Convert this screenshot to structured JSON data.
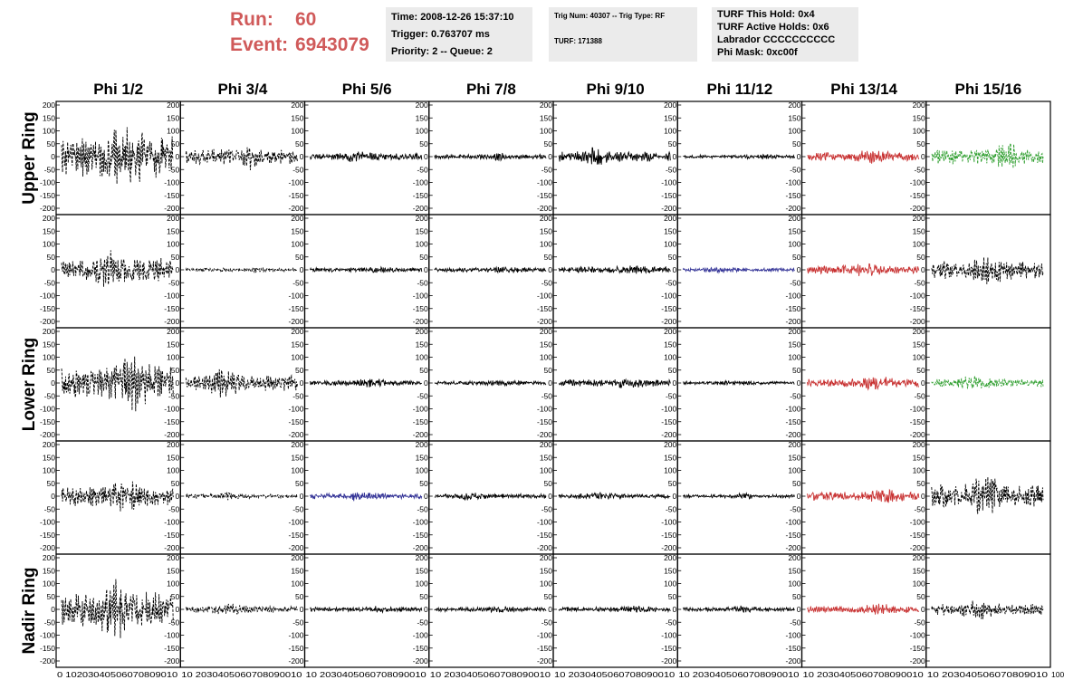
{
  "header": {
    "run_label": "Run:",
    "run_value": "60",
    "event_label": "Event:",
    "event_value": "6943079",
    "info_box_1": [
      "Time: 2008-12-26 15:37:10",
      "Trigger: 0.763707 ms",
      "Priority: 2 -- Queue: 2"
    ],
    "info_box_2": [
      "Trig Num: 40307 -- Trig Type: RF",
      "TURF: 171388"
    ],
    "info_box_3": [
      "TURF This Hold: 0x4",
      "TURF Active Holds: 0x6",
      "Labrador CCCCCCCCCC",
      "Phi Mask: 0xc00f"
    ]
  },
  "colors": {
    "header_text": "#d05a5a",
    "info_bg": "#ebebeb",
    "trace_default": "#000000",
    "trace_red": "#c83232",
    "trace_blue": "#323296",
    "trace_green": "#32a032"
  },
  "chart_data": {
    "type": "line",
    "columns": [
      "Phi 1/2",
      "Phi 3/4",
      "Phi 5/6",
      "Phi 7/8",
      "Phi 9/10",
      "Phi 11/12",
      "Phi 13/14",
      "Phi 15/16"
    ],
    "row_labels": [
      "Upper Ring",
      "Lower Ring",
      "Nadir Ring"
    ],
    "panel_rows": 5,
    "xlim": [
      0,
      100
    ],
    "ylim": [
      -200,
      200
    ],
    "y_ticks": [
      -200,
      -150,
      -100,
      -50,
      0,
      50,
      100,
      150,
      200
    ],
    "x_ticks": [
      0,
      10,
      20,
      30,
      40,
      50,
      60,
      70,
      80,
      90,
      100
    ],
    "bottom_tick_text": [
      "0 10203040506070809010",
      "10 2030405060708090010",
      "10 2030405060708090010",
      "10 2030405060708090010",
      "10 2030405060708090010",
      "10 2030405060708090010",
      "10 2030405060708090010",
      "10 203040506070809010"
    ],
    "bottom_last_tick": "100",
    "panels": [
      [
        {
          "color": "black",
          "dashed": true,
          "amplitude": 130
        },
        {
          "color": "black",
          "dashed": true,
          "amplitude": 45
        },
        {
          "color": "black",
          "dashed": false,
          "amplitude": 20
        },
        {
          "color": "black",
          "dashed": false,
          "amplitude": 14
        },
        {
          "color": "black",
          "dashed": false,
          "amplitude": 30
        },
        {
          "color": "black",
          "dashed": false,
          "amplitude": 10
        },
        {
          "color": "red",
          "dashed": false,
          "amplitude": 25
        },
        {
          "color": "green",
          "dashed": true,
          "amplitude": 45
        }
      ],
      [
        {
          "color": "black",
          "dashed": true,
          "amplitude": 70
        },
        {
          "color": "black",
          "dashed": true,
          "amplitude": 10
        },
        {
          "color": "black",
          "dashed": false,
          "amplitude": 13
        },
        {
          "color": "black",
          "dashed": false,
          "amplitude": 13
        },
        {
          "color": "black",
          "dashed": false,
          "amplitude": 18
        },
        {
          "color": "blue",
          "dashed": false,
          "amplitude": 10
        },
        {
          "color": "red",
          "dashed": false,
          "amplitude": 25
        },
        {
          "color": "black",
          "dashed": true,
          "amplitude": 55
        }
      ],
      [
        {
          "color": "black",
          "dashed": true,
          "amplitude": 100
        },
        {
          "color": "black",
          "dashed": true,
          "amplitude": 50
        },
        {
          "color": "black",
          "dashed": false,
          "amplitude": 15
        },
        {
          "color": "black",
          "dashed": false,
          "amplitude": 12
        },
        {
          "color": "black",
          "dashed": false,
          "amplitude": 20
        },
        {
          "color": "black",
          "dashed": false,
          "amplitude": 10
        },
        {
          "color": "red",
          "dashed": false,
          "amplitude": 25
        },
        {
          "color": "green",
          "dashed": true,
          "amplitude": 25
        }
      ],
      [
        {
          "color": "black",
          "dashed": true,
          "amplitude": 60
        },
        {
          "color": "black",
          "dashed": true,
          "amplitude": 13
        },
        {
          "color": "blue",
          "dashed": false,
          "amplitude": 17
        },
        {
          "color": "black",
          "dashed": false,
          "amplitude": 14
        },
        {
          "color": "black",
          "dashed": false,
          "amplitude": 14
        },
        {
          "color": "black",
          "dashed": false,
          "amplitude": 10
        },
        {
          "color": "red",
          "dashed": false,
          "amplitude": 25
        },
        {
          "color": "black",
          "dashed": true,
          "amplitude": 70
        }
      ],
      [
        {
          "color": "black",
          "dashed": true,
          "amplitude": 110
        },
        {
          "color": "black",
          "dashed": true,
          "amplitude": 20
        },
        {
          "color": "black",
          "dashed": false,
          "amplitude": 13
        },
        {
          "color": "black",
          "dashed": false,
          "amplitude": 12
        },
        {
          "color": "black",
          "dashed": false,
          "amplitude": 13
        },
        {
          "color": "black",
          "dashed": false,
          "amplitude": 12
        },
        {
          "color": "red",
          "dashed": false,
          "amplitude": 20
        },
        {
          "color": "black",
          "dashed": true,
          "amplitude": 35
        }
      ]
    ]
  }
}
